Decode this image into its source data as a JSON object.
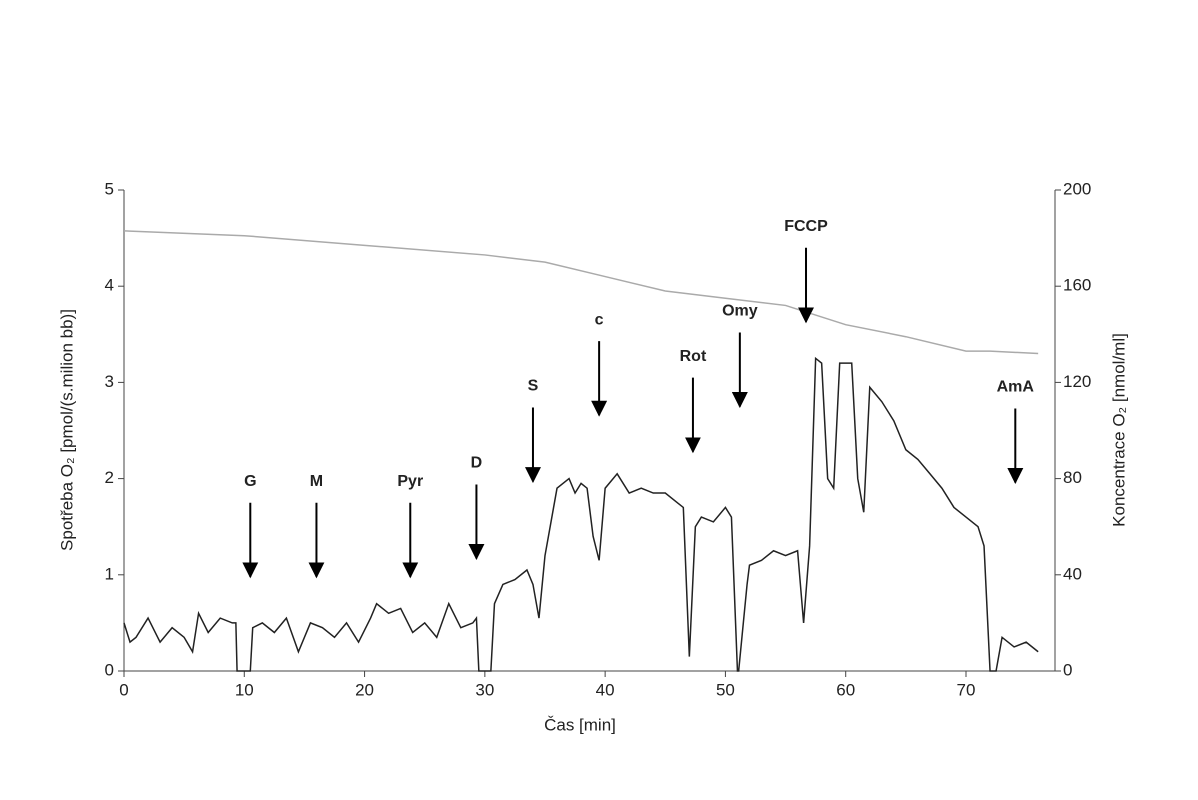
{
  "chart_data": {
    "type": "line",
    "xlabel": "Čas [min]",
    "ylabel": "Spotřeba O₂ [pmol/(s.milion bb)]",
    "y2label": "Koncentrace O₂ [nmol/ml]",
    "xlim": [
      0,
      77.4
    ],
    "xticks": [
      0,
      10,
      20,
      30,
      40,
      50,
      60,
      70
    ],
    "ylim": [
      0,
      5
    ],
    "yticks": [
      0,
      1,
      2,
      3,
      4,
      5
    ],
    "y2lim": [
      0,
      200
    ],
    "y2ticks": [
      0,
      40,
      80,
      120,
      160,
      200
    ],
    "series": [
      {
        "name": "Spotřeba O₂",
        "color": "#222222",
        "x": [
          0,
          0.5,
          1,
          2,
          3,
          4,
          5,
          5.7,
          6.2,
          7,
          8,
          9,
          9.3,
          9.4,
          10.5,
          10.7,
          11.5,
          12.5,
          13.5,
          14.5,
          15.5,
          16.5,
          17.5,
          18.5,
          19.5,
          20.5,
          21,
          22,
          23,
          24,
          25,
          26,
          27,
          28,
          29,
          29.3,
          29.5,
          30.5,
          30.8,
          31.5,
          32.5,
          33.5,
          34,
          34.5,
          35,
          36,
          37,
          37.5,
          38,
          38.5,
          39,
          39.5,
          40,
          41,
          42,
          43,
          44,
          45,
          46,
          46.5,
          47,
          47.5,
          48,
          49,
          50,
          50.5,
          51,
          51.1,
          51.8,
          52,
          53,
          54,
          55,
          56,
          56.5,
          57,
          57.5,
          58,
          58.5,
          59,
          59.5,
          60,
          60.5,
          61,
          61.5,
          62,
          63,
          64,
          65,
          66,
          67,
          68,
          69,
          70,
          71,
          71.5,
          72,
          72.5,
          73,
          74,
          75,
          76
        ],
        "values": [
          0.5,
          0.3,
          0.35,
          0.55,
          0.3,
          0.45,
          0.35,
          0.2,
          0.6,
          0.4,
          0.55,
          0.5,
          0.5,
          0,
          0,
          0.45,
          0.5,
          0.4,
          0.55,
          0.2,
          0.5,
          0.45,
          0.35,
          0.5,
          0.3,
          0.55,
          0.7,
          0.6,
          0.65,
          0.4,
          0.5,
          0.35,
          0.7,
          0.45,
          0.5,
          0.55,
          0,
          0,
          0.7,
          0.9,
          0.95,
          1.05,
          0.9,
          0.55,
          1.2,
          1.9,
          2.0,
          1.85,
          1.95,
          1.9,
          1.4,
          1.15,
          1.9,
          2.05,
          1.85,
          1.9,
          1.85,
          1.85,
          1.75,
          1.7,
          0.15,
          1.5,
          1.6,
          1.55,
          1.7,
          1.6,
          0,
          0,
          0.9,
          1.1,
          1.15,
          1.25,
          1.2,
          1.25,
          0.5,
          1.3,
          3.25,
          3.2,
          2.0,
          1.9,
          3.2,
          3.2,
          3.2,
          2.0,
          1.65,
          2.95,
          2.8,
          2.6,
          2.3,
          2.2,
          2.05,
          1.9,
          1.7,
          1.6,
          1.5,
          1.3,
          0,
          0,
          0.35,
          0.25,
          0.3,
          0.2
        ]
      },
      {
        "name": "Koncentrace O₂",
        "color": "#aaaaaa",
        "axis": "y2",
        "x": [
          0,
          10,
          20,
          30,
          35,
          40,
          45,
          50,
          55,
          60,
          65,
          70,
          72,
          76
        ],
        "values": [
          183,
          181,
          177,
          173,
          170,
          164,
          158,
          155,
          152,
          144,
          139,
          133,
          133,
          132
        ]
      }
    ],
    "annotations": [
      {
        "text": "G",
        "x": 10.5,
        "y": 0.98
      },
      {
        "text": "M",
        "x": 16,
        "y": 0.98
      },
      {
        "text": "Pyr",
        "x": 23.8,
        "y": 0.98
      },
      {
        "text": "D",
        "x": 29.3,
        "y": 1.17
      },
      {
        "text": "S",
        "x": 34,
        "y": 1.97
      },
      {
        "text": "c",
        "x": 39.5,
        "y": 2.66
      },
      {
        "text": "Rot",
        "x": 47.3,
        "y": 2.28
      },
      {
        "text": "Omy",
        "x": 51.2,
        "y": 2.75
      },
      {
        "text": "FCCP",
        "x": 56.7,
        "y": 3.63
      },
      {
        "text": "AmA",
        "x": 74.1,
        "y": 1.96
      }
    ]
  }
}
